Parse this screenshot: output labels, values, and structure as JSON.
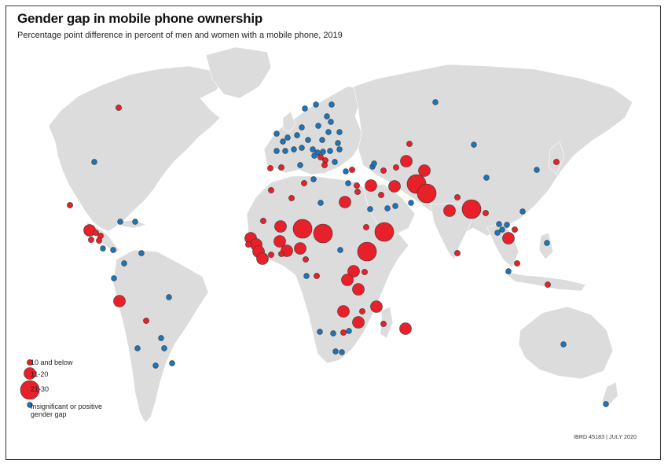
{
  "title": "Gender gap in mobile phone ownership",
  "subtitle": "Percentage point difference in percent of men and women with a mobile phone, 2019",
  "legend": {
    "items": [
      {
        "label": "10 and below",
        "type": "gap-small"
      },
      {
        "label": "11-20",
        "type": "gap-medium"
      },
      {
        "label": "21-30",
        "type": "gap-large"
      },
      {
        "label": "Insignificant or positive",
        "label2": "gender gap",
        "type": "insignificant"
      }
    ]
  },
  "credit": "IBRD 45183  |  JULY 2020",
  "colors": {
    "land": "#dcdcdc",
    "ocean": "#ffffff",
    "gap": "#e8202a",
    "insignificant": "#1a75bb",
    "marker_stroke": "#333333"
  }
}
